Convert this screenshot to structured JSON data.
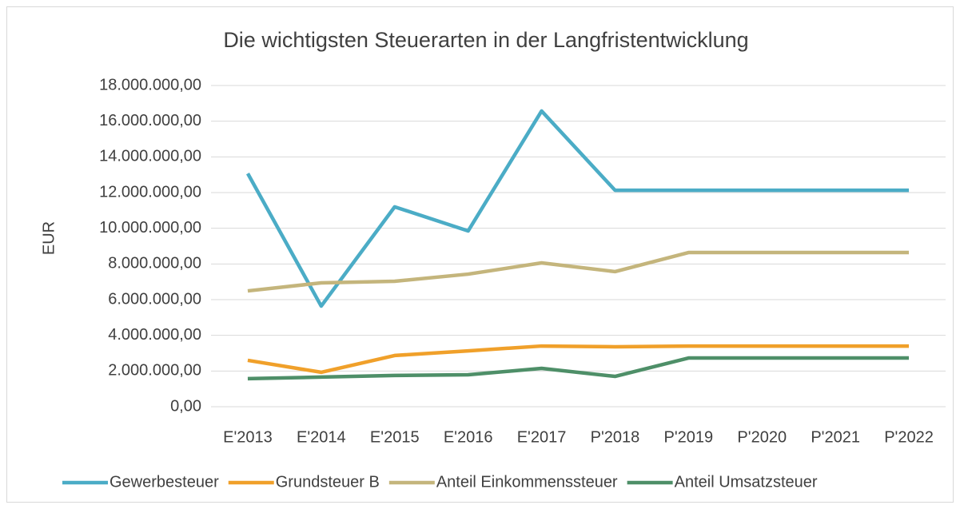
{
  "chart_data": {
    "type": "line",
    "title": "Die wichtigsten Steuerarten in der Langfristentwicklung",
    "y_label": "EUR",
    "categories": [
      "E'2013",
      "E'2014",
      "E'2015",
      "E'2016",
      "E'2017",
      "P'2018",
      "P'2019",
      "P'2020",
      "P'2021",
      "P'2022"
    ],
    "series": [
      {
        "name": "Gewerbesteuer",
        "color": "#4bacc6",
        "values": [
          13070000,
          5640000,
          11200000,
          9850000,
          16570000,
          12130000,
          12130000,
          12130000,
          12130000,
          12130000
        ]
      },
      {
        "name": "Grundsteuer B",
        "color": "#f0a02a",
        "values": [
          2600000,
          1930000,
          2870000,
          3130000,
          3400000,
          3360000,
          3400000,
          3400000,
          3400000,
          3400000
        ]
      },
      {
        "name": "Anteil Einkommenssteuer",
        "color": "#c4b57c",
        "values": [
          6490000,
          6940000,
          7030000,
          7430000,
          8060000,
          7570000,
          8640000,
          8640000,
          8640000,
          8640000
        ]
      },
      {
        "name": "Anteil Umsatzsteuer",
        "color": "#4e8f68",
        "values": [
          1570000,
          1660000,
          1750000,
          1790000,
          2150000,
          1700000,
          2730000,
          2730000,
          2730000,
          2730000
        ]
      }
    ],
    "ylim": [
      0,
      18000000
    ],
    "yticks": [
      {
        "value": 0,
        "label": "0,00"
      },
      {
        "value": 2000000,
        "label": "2.000.000,00"
      },
      {
        "value": 4000000,
        "label": "4.000.000,00"
      },
      {
        "value": 6000000,
        "label": "6.000.000,00"
      },
      {
        "value": 8000000,
        "label": "8.000.000,00"
      },
      {
        "value": 10000000,
        "label": "10.000.000,00"
      },
      {
        "value": 12000000,
        "label": "12.000.000,00"
      },
      {
        "value": 14000000,
        "label": "14.000.000,00"
      },
      {
        "value": 16000000,
        "label": "16.000.000,00"
      },
      {
        "value": 18000000,
        "label": "18.000.000,00"
      }
    ],
    "grid": true,
    "legend": "bottom"
  }
}
